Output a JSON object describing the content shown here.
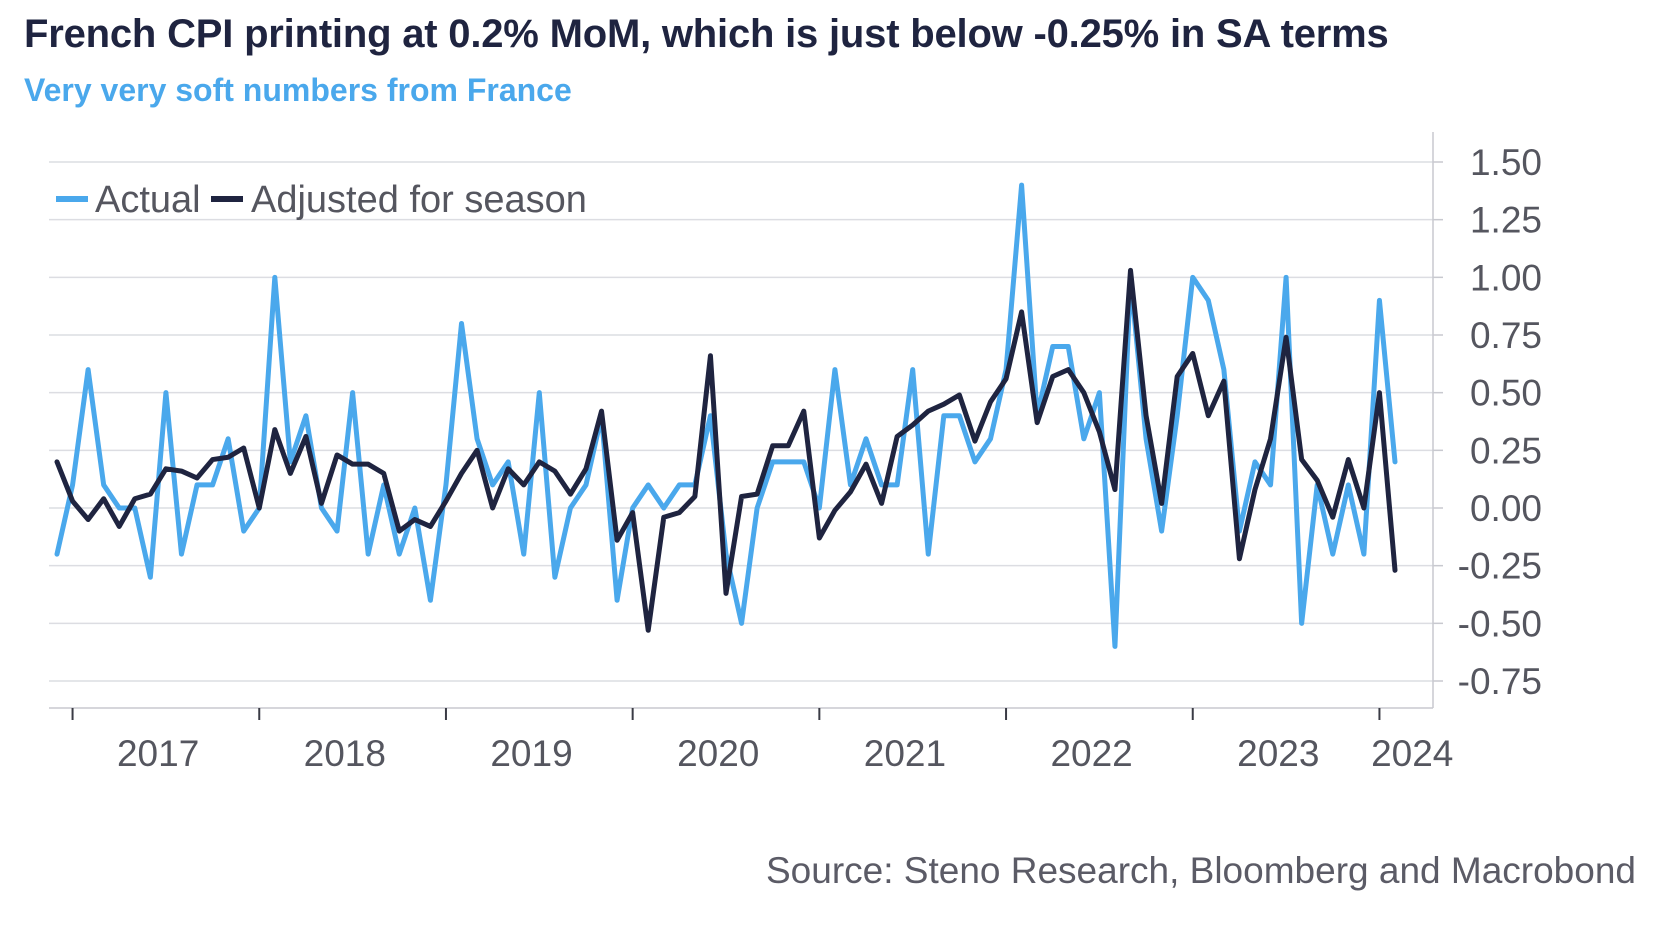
{
  "header": {
    "title": "French CPI printing at 0.2% MoM, which is just below -0.25% in SA terms",
    "subtitle": "Very very soft numbers from France"
  },
  "footer": {
    "source": "Source: Steno Research, Bloomberg and Macrobond"
  },
  "colors": {
    "actual": "#4aa8ec",
    "adjusted": "#1f2440",
    "grid": "#dcdde2",
    "axis": "#c8c9cf"
  },
  "chart_data": {
    "type": "line",
    "title": "French CPI printing at 0.2% MoM, which is just below -0.25% in SA terms",
    "subtitle": "Very very soft numbers from France",
    "xlabel": "",
    "ylabel": "",
    "y_axis_side": "right",
    "ylim": [
      -0.85,
      1.65
    ],
    "y_ticks": [
      1.5,
      1.25,
      1.0,
      0.75,
      0.5,
      0.25,
      0.0,
      -0.25,
      -0.5,
      -0.75
    ],
    "y_tick_labels": [
      "1.50",
      "1.25",
      "1.00",
      "0.75",
      "0.50",
      "0.25",
      "0.00",
      "-0.25",
      "-0.50",
      "-0.75"
    ],
    "x_tick_labels": [
      "2017",
      "2018",
      "2019",
      "2020",
      "2021",
      "2022",
      "2023",
      "2024"
    ],
    "x_start": "2016-12",
    "x_end": "2024-02",
    "grid": "horizontal",
    "legend_position": "top-left",
    "series": [
      {
        "name": "Actual",
        "color": "#4aa8ec",
        "values": [
          -0.2,
          0.1,
          0.6,
          0.1,
          0.0,
          0.0,
          -0.3,
          0.5,
          -0.2,
          0.1,
          0.1,
          0.3,
          -0.1,
          0.0,
          1.0,
          0.2,
          0.4,
          0.0,
          -0.1,
          0.5,
          -0.2,
          0.1,
          -0.2,
          0.0,
          -0.4,
          0.1,
          0.8,
          0.3,
          0.1,
          0.2,
          -0.2,
          0.5,
          -0.3,
          0.0,
          0.1,
          0.4,
          -0.4,
          0.0,
          0.1,
          0.0,
          0.1,
          0.1,
          0.4,
          -0.2,
          -0.5,
          0.0,
          0.2,
          0.2,
          0.2,
          0.0,
          0.6,
          0.1,
          0.3,
          0.1,
          0.1,
          0.6,
          -0.2,
          0.4,
          0.4,
          0.2,
          0.3,
          0.6,
          1.4,
          0.4,
          0.7,
          0.7,
          0.3,
          0.5,
          -0.6,
          1.0,
          0.3,
          -0.1,
          0.4,
          1.0,
          0.9,
          0.6,
          -0.1,
          0.2,
          0.1,
          1.0,
          -0.5,
          0.1,
          -0.2,
          0.1,
          -0.2,
          0.9,
          0.2
        ]
      },
      {
        "name": "Adjusted for season",
        "color": "#1f2440",
        "values": [
          0.2,
          0.03,
          -0.05,
          0.04,
          -0.08,
          0.04,
          0.06,
          0.17,
          0.16,
          0.13,
          0.21,
          0.22,
          0.26,
          0.0,
          0.34,
          0.15,
          0.31,
          0.02,
          0.23,
          0.19,
          0.19,
          0.15,
          -0.1,
          -0.05,
          -0.08,
          0.03,
          0.15,
          0.25,
          0.0,
          0.17,
          0.1,
          0.2,
          0.16,
          0.06,
          0.17,
          0.42,
          -0.14,
          -0.02,
          -0.53,
          -0.04,
          -0.02,
          0.05,
          0.66,
          -0.37,
          0.05,
          0.06,
          0.27,
          0.27,
          0.42,
          -0.13,
          -0.01,
          0.07,
          0.19,
          0.02,
          0.31,
          0.36,
          0.42,
          0.45,
          0.49,
          0.29,
          0.46,
          0.56,
          0.85,
          0.37,
          0.57,
          0.6,
          0.5,
          0.33,
          0.08,
          1.03,
          0.4,
          0.02,
          0.57,
          0.67,
          0.4,
          0.55,
          -0.22,
          0.08,
          0.3,
          0.74,
          0.21,
          0.12,
          -0.04,
          0.21,
          0.0,
          0.5,
          -0.27
        ]
      }
    ]
  }
}
